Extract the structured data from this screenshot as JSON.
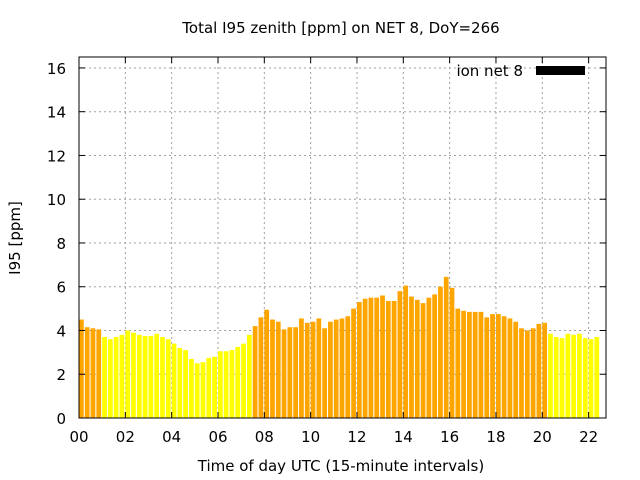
{
  "chart_data": {
    "type": "bar",
    "title": "Total I95 zenith [ppm] on NET 8, DoY=266",
    "xlabel": "Time of day UTC (15-minute intervals)",
    "ylabel": "I95 [ppm]",
    "ylim": [
      0,
      16.5
    ],
    "xlim": [
      0,
      22.75
    ],
    "yticks": [
      0,
      2,
      4,
      6,
      8,
      10,
      12,
      14,
      16
    ],
    "xticks": [
      0,
      2,
      4,
      6,
      8,
      10,
      12,
      14,
      16,
      18,
      20,
      22
    ],
    "xtick_labels": [
      "00",
      "02",
      "04",
      "06",
      "08",
      "10",
      "12",
      "14",
      "16",
      "18",
      "20",
      "22"
    ],
    "grid": true,
    "legend": {
      "placement": "top-right",
      "entries": [
        {
          "label": "ion net 8",
          "color": "#000000"
        }
      ]
    },
    "colors": {
      "high": "#ffa500",
      "low": "#ffff00"
    },
    "interval_hours": 0.25,
    "series": [
      {
        "name": "ion net 8",
        "start_time": 0,
        "values": [
          4.5,
          4.15,
          4.1,
          4.05,
          3.7,
          3.6,
          3.7,
          3.8,
          4.0,
          3.9,
          3.8,
          3.75,
          3.75,
          3.85,
          3.7,
          3.6,
          3.4,
          3.2,
          3.1,
          2.7,
          2.5,
          2.55,
          2.75,
          2.8,
          3.05,
          3.05,
          3.1,
          3.25,
          3.4,
          3.8,
          4.2,
          4.6,
          4.95,
          4.5,
          4.4,
          4.05,
          4.15,
          4.15,
          4.55,
          4.35,
          4.4,
          4.55,
          4.1,
          4.4,
          4.5,
          4.55,
          4.65,
          5.0,
          5.3,
          5.45,
          5.5,
          5.5,
          5.6,
          5.35,
          5.35,
          5.8,
          6.05,
          5.55,
          5.4,
          5.25,
          5.5,
          5.65,
          6.0,
          6.45,
          5.95,
          5.0,
          4.9,
          4.85,
          4.85,
          4.85,
          4.6,
          4.75,
          4.75,
          4.65,
          4.55,
          4.4,
          4.1,
          4.0,
          4.1,
          4.3,
          4.35,
          3.85,
          3.7,
          3.65,
          3.85,
          3.8,
          3.85,
          3.65,
          3.6,
          3.7
        ],
        "colors": [
          "high",
          "high",
          "high",
          "high",
          "low",
          "low",
          "low",
          "low",
          "low",
          "low",
          "low",
          "low",
          "low",
          "low",
          "low",
          "low",
          "low",
          "low",
          "low",
          "low",
          "low",
          "low",
          "low",
          "low",
          "low",
          "low",
          "low",
          "low",
          "low",
          "low",
          "high",
          "high",
          "high",
          "high",
          "high",
          "high",
          "high",
          "high",
          "high",
          "high",
          "high",
          "high",
          "high",
          "high",
          "high",
          "high",
          "high",
          "high",
          "high",
          "high",
          "high",
          "high",
          "high",
          "high",
          "high",
          "high",
          "high",
          "high",
          "high",
          "high",
          "high",
          "high",
          "high",
          "high",
          "high",
          "high",
          "high",
          "high",
          "high",
          "high",
          "high",
          "high",
          "high",
          "high",
          "high",
          "high",
          "high",
          "high",
          "high",
          "high",
          "high",
          "low",
          "low",
          "low",
          "low",
          "low",
          "low",
          "low",
          "low",
          "low"
        ]
      }
    ]
  }
}
